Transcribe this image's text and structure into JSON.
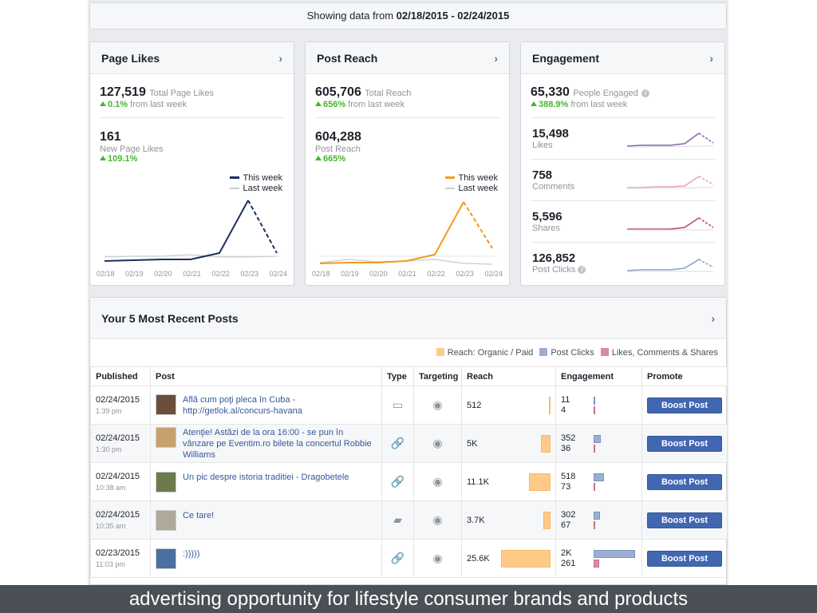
{
  "banner": {
    "prefix": "Showing data from",
    "range": "02/18/2015 - 02/24/2015"
  },
  "page_likes": {
    "title": "Page Likes",
    "total": "127,519",
    "total_label": "Total Page Likes",
    "total_change": "0.1%",
    "from_label": "from last week",
    "new_value": "161",
    "new_label": "New Page Likes",
    "new_change": "109.1%",
    "legend_this": "This week",
    "legend_last": "Last week",
    "color": "#1c2f5e"
  },
  "post_reach": {
    "title": "Post Reach",
    "total": "605,706",
    "total_label": "Total Reach",
    "total_change": "656%",
    "from_label": "from last week",
    "new_value": "604,288",
    "new_label": "Post Reach",
    "new_change": "665%",
    "legend_this": "This week",
    "legend_last": "Last week",
    "color": "#f29b1c"
  },
  "axis_dates": [
    "02/18",
    "02/19",
    "02/20",
    "02/21",
    "02/22",
    "02/23",
    "02/24"
  ],
  "engagement": {
    "title": "Engagement",
    "total": "65,330",
    "total_label": "People Engaged",
    "total_change": "388.9%",
    "from_label": "from last week",
    "rows": [
      {
        "value": "15,498",
        "label": "Likes",
        "color": "#8e62b0"
      },
      {
        "value": "758",
        "label": "Comments",
        "color": "#e8a3b8"
      },
      {
        "value": "5,596",
        "label": "Shares",
        "color": "#c0486b"
      },
      {
        "value": "126,852",
        "label": "Post Clicks",
        "color": "#8a9fd0"
      }
    ]
  },
  "posts": {
    "title": "Your 5 Most Recent Posts",
    "legend": [
      "Reach: Organic / Paid",
      "Post Clicks",
      "Likes, Comments & Shares"
    ],
    "legend_colors": [
      "#fdca88",
      "#9aafd1",
      "#db8aa3"
    ],
    "columns": [
      "Published",
      "Post",
      "Type",
      "Targeting",
      "Reach",
      "Engagement",
      "Promote"
    ],
    "boost_label": "Boost Post",
    "rows": [
      {
        "date": "02/24/2015",
        "time": "1:39 pm",
        "text": "Află cum poţi pleca în Cuba - http://getlok.al/concurs-havana",
        "type": "album-icon",
        "reach": "512",
        "reach_frac": 0.02,
        "clicks": "11",
        "shares": "4",
        "clicks_frac": 0.005,
        "shares_frac": 0.002
      },
      {
        "date": "02/24/2015",
        "time": "1:30 pm",
        "text": "Atenţie! Astăzi de la ora 16:00 - se pun în vânzare pe Eventim.ro bilete la concertul Robbie Williams",
        "type": "link-icon",
        "reach": "5K",
        "reach_frac": 0.195,
        "clicks": "352",
        "shares": "36",
        "clicks_frac": 0.17,
        "shares_frac": 0.017
      },
      {
        "date": "02/24/2015",
        "time": "10:38 am",
        "text": "Un pic despre istoria traditiei - Dragobetele",
        "type": "link-icon",
        "reach": "11.1K",
        "reach_frac": 0.43,
        "clicks": "518",
        "shares": "73",
        "clicks_frac": 0.25,
        "shares_frac": 0.035
      },
      {
        "date": "02/24/2015",
        "time": "10:35 am",
        "text": "Ce tare!",
        "type": "status-icon",
        "reach": "3.7K",
        "reach_frac": 0.145,
        "clicks": "302",
        "shares": "67",
        "clicks_frac": 0.15,
        "shares_frac": 0.033
      },
      {
        "date": "02/23/2015",
        "time": "11:03 pm",
        "text": ":)))))",
        "type": "link-icon",
        "reach": "25.6K",
        "reach_frac": 1.0,
        "clicks": "2K",
        "shares": "261",
        "clicks_frac": 1.0,
        "shares_frac": 0.13
      }
    ]
  },
  "caption": "advertising opportunity for lifestyle consumer brands and products"
}
